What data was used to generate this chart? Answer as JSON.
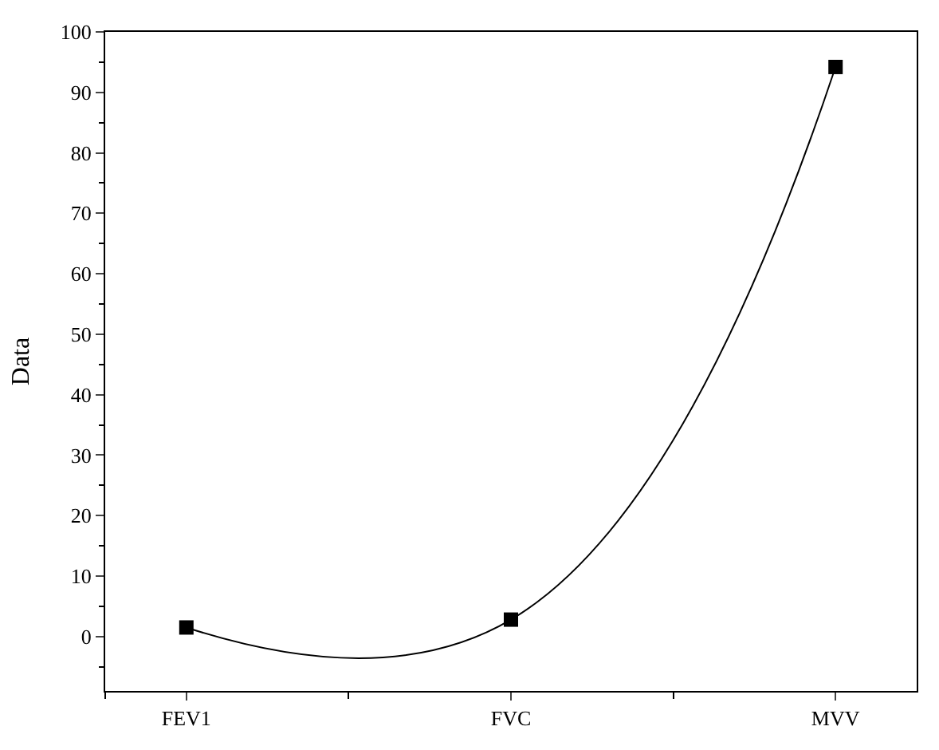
{
  "chart_data": {
    "type": "line",
    "ylabel": "Data",
    "categories": [
      "FEV1",
      "FVC",
      "MVV"
    ],
    "series": [
      {
        "color": "#000000",
        "values": [
          1.5,
          2.8,
          94.2
        ]
      }
    ],
    "ylim": [
      -9,
      100
    ],
    "yticks": [
      0,
      10,
      20,
      30,
      40,
      50,
      60,
      70,
      80,
      90,
      100
    ],
    "marker": "square",
    "line_style": "solid",
    "legend": false
  }
}
